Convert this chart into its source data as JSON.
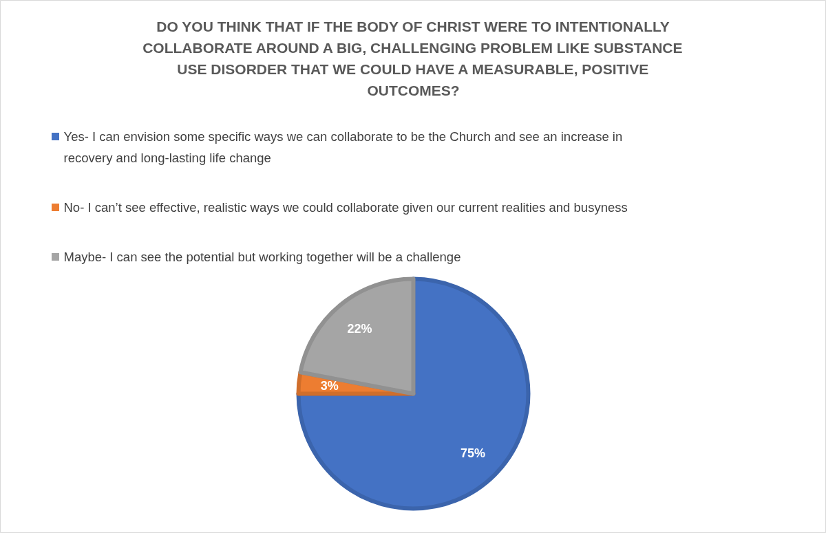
{
  "chart_data": {
    "type": "pie",
    "title": "DO YOU THINK THAT IF THE BODY OF CHRIST WERE TO INTENTIONALLY COLLABORATE AROUND A BIG, CHALLENGING PROBLEM LIKE SUBSTANCE USE DISORDER THAT WE COULD HAVE A MEASURABLE, POSITIVE OUTCOMES?",
    "categories": [
      "Yes- I can envision some specific ways we can collaborate to be the Church and see an increase in recovery and long-lasting life change",
      "No- I can’t see effective, realistic ways we could collaborate given our current realities and busyness",
      "Maybe- I can see the potential but working together will be a challenge"
    ],
    "values": [
      75,
      3,
      22
    ],
    "colors": [
      "#4472c4",
      "#ed7d31",
      "#a5a5a5"
    ],
    "value_labels": [
      "75%",
      "3%",
      "22%"
    ],
    "legend": "top"
  }
}
